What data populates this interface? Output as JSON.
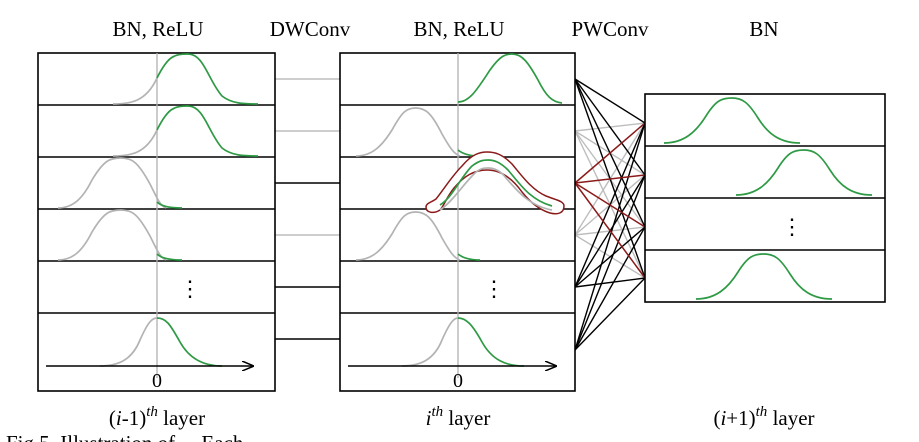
{
  "top_labels": {
    "bn_relu_1": "BN, ReLU",
    "dwconv": "DWConv",
    "bn_relu_2": "BN, ReLU",
    "pwconv": "PWConv",
    "bn": "BN"
  },
  "bottom_labels": {
    "left": {
      "pre": "(",
      "var": "i",
      "mid": "-1)",
      "sup": "th",
      "post": " layer"
    },
    "middle": {
      "var": "i",
      "sup": "th",
      "post": " layer"
    },
    "right": {
      "pre": "(",
      "var": "i",
      "mid": "+1)",
      "sup": "th",
      "post": " layer"
    }
  },
  "axis_zero_label": "0",
  "ellipsis": "⋮",
  "caption_fragment": "Fig.5.  Illustration of ... Each ...",
  "colors": {
    "relu_active": "#2f9a45",
    "relu_clipped": "#b3b3b3",
    "highlight": "#8b1a1a",
    "connection_active": "#000000",
    "connection_inactive": "#bdbdbd"
  }
}
